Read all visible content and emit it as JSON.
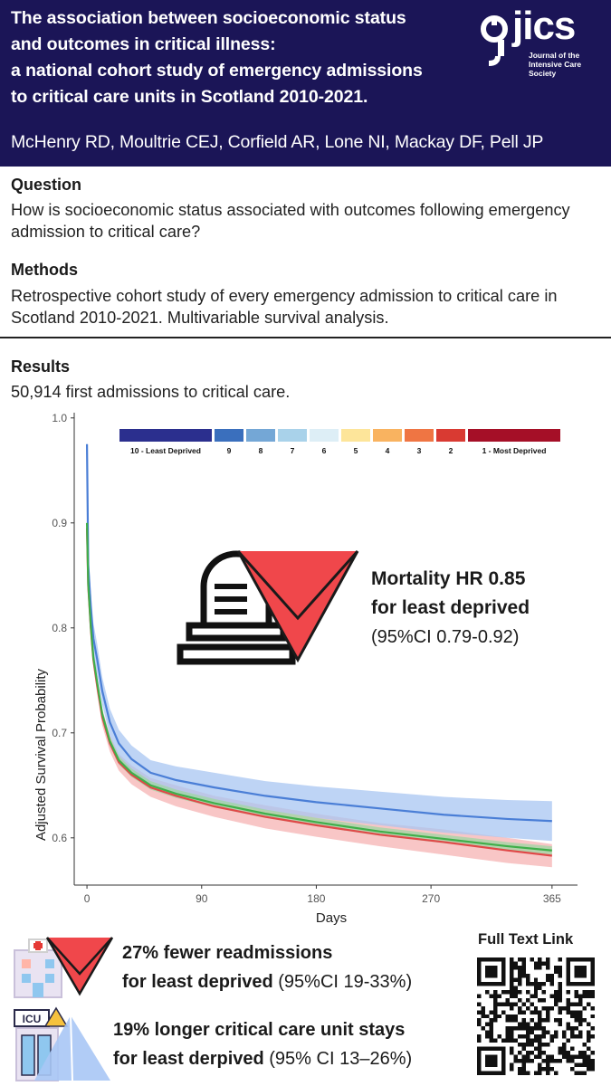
{
  "header": {
    "title_lines": [
      "The association between socioeconomic status",
      "and outcomes in critical illness:",
      "a national cohort study of emergency admissions",
      "to critical care units in Scotland 2010-2021."
    ],
    "authors": "McHenry RD, Moultrie CEJ, Corfield AR, Lone NI, Mackay DF, Pell JP",
    "logo_word": "jics",
    "logo_sub": [
      "Journal of the",
      "Intensive Care",
      "Society"
    ]
  },
  "question": {
    "heading": "Question",
    "text": "How is socioeconomic status associated with outcomes following emergency admission to critical care?"
  },
  "methods": {
    "heading": "Methods",
    "text": "Retrospective cohort study of every emergency admission to critical care in Scotland 2010-2021. Multivariable survival analysis."
  },
  "results": {
    "heading": "Results",
    "text": "50,914 first admissions to critical care."
  },
  "chart_data": {
    "type": "line",
    "title": "",
    "xlabel": "Days",
    "ylabel": "Adjusted Survival Probability",
    "xlim": [
      -10,
      385
    ],
    "ylim": [
      0.555,
      1.005
    ],
    "x_ticks": [
      0,
      90,
      180,
      270,
      365
    ],
    "y_ticks": [
      0.6,
      0.7,
      0.8,
      0.9,
      1.0
    ],
    "y_tick_labels": [
      "0.6",
      "0.7",
      "0.8",
      "0.9",
      "1.0"
    ],
    "legend": {
      "placement": "top",
      "entries": [
        {
          "label": "10 - Least Deprived",
          "color": "#2b2f8e"
        },
        {
          "label": "9",
          "color": "#3a6fbd"
        },
        {
          "label": "8",
          "color": "#74a7d6"
        },
        {
          "label": "7",
          "color": "#a9d2ea"
        },
        {
          "label": "6",
          "color": "#ddeef6"
        },
        {
          "label": "5",
          "color": "#fde59a"
        },
        {
          "label": "4",
          "color": "#f9b360"
        },
        {
          "label": "3",
          "color": "#ef7543"
        },
        {
          "label": "2",
          "color": "#d93a32"
        },
        {
          "label": "1 - Most Deprived",
          "color": "#a50f27"
        }
      ]
    },
    "series": [
      {
        "name": "10 - Least Deprived",
        "color": "#4a7ed6",
        "band_color": "#a8c6f2",
        "x": [
          0,
          1,
          3,
          5,
          8,
          12,
          18,
          25,
          35,
          50,
          70,
          100,
          140,
          180,
          230,
          280,
          330,
          365
        ],
        "y": [
          0.975,
          0.86,
          0.82,
          0.79,
          0.77,
          0.74,
          0.71,
          0.69,
          0.675,
          0.662,
          0.655,
          0.648,
          0.64,
          0.634,
          0.628,
          0.622,
          0.618,
          0.616
        ],
        "lower": [
          0.97,
          0.85,
          0.805,
          0.775,
          0.755,
          0.727,
          0.697,
          0.677,
          0.663,
          0.65,
          0.642,
          0.634,
          0.626,
          0.619,
          0.612,
          0.605,
          0.6,
          0.597
        ],
        "upper": [
          0.98,
          0.87,
          0.835,
          0.805,
          0.785,
          0.753,
          0.723,
          0.703,
          0.688,
          0.674,
          0.668,
          0.662,
          0.654,
          0.649,
          0.644,
          0.639,
          0.636,
          0.635
        ]
      },
      {
        "name": "1 - Most Deprived",
        "color": "#e04848",
        "band_color": "#f5b3b3",
        "x": [
          0,
          1,
          3,
          5,
          8,
          12,
          18,
          25,
          35,
          50,
          70,
          100,
          140,
          180,
          230,
          280,
          330,
          365
        ],
        "y": [
          0.895,
          0.84,
          0.8,
          0.77,
          0.745,
          0.715,
          0.69,
          0.672,
          0.66,
          0.648,
          0.64,
          0.63,
          0.62,
          0.612,
          0.603,
          0.596,
          0.588,
          0.583
        ],
        "lower": [
          0.89,
          0.835,
          0.793,
          0.763,
          0.737,
          0.707,
          0.682,
          0.664,
          0.651,
          0.639,
          0.63,
          0.62,
          0.609,
          0.601,
          0.592,
          0.584,
          0.576,
          0.572
        ],
        "upper": [
          0.9,
          0.845,
          0.807,
          0.777,
          0.753,
          0.723,
          0.698,
          0.68,
          0.669,
          0.657,
          0.65,
          0.64,
          0.631,
          0.623,
          0.614,
          0.608,
          0.6,
          0.594
        ]
      },
      {
        "name": "Other quintiles",
        "color": "#3fae4a",
        "band_color": "#9fd6a3",
        "x": [
          0,
          1,
          3,
          5,
          8,
          12,
          18,
          25,
          35,
          50,
          70,
          100,
          140,
          180,
          230,
          280,
          330,
          365
        ],
        "y": [
          0.9,
          0.842,
          0.802,
          0.772,
          0.748,
          0.718,
          0.692,
          0.674,
          0.662,
          0.65,
          0.642,
          0.633,
          0.623,
          0.615,
          0.606,
          0.599,
          0.592,
          0.588
        ],
        "lower": [
          0.896,
          0.838,
          0.798,
          0.768,
          0.744,
          0.714,
          0.688,
          0.67,
          0.658,
          0.646,
          0.638,
          0.629,
          0.619,
          0.611,
          0.602,
          0.595,
          0.588,
          0.584
        ],
        "upper": [
          0.904,
          0.846,
          0.806,
          0.776,
          0.752,
          0.722,
          0.696,
          0.678,
          0.666,
          0.654,
          0.646,
          0.637,
          0.627,
          0.619,
          0.61,
          0.603,
          0.596,
          0.592
        ]
      }
    ]
  },
  "callout": {
    "title_line1": "Mortality HR 0.85",
    "title_line2": "for least deprived",
    "ci": "(95%CI 0.79-0.92)"
  },
  "stats": {
    "readmissions_line1": "27% fewer readmissions",
    "readmissions_bold2": "for least deprived",
    "readmissions_ci": " (95%CI 19-33%)",
    "stays_line1": "19% longer critical care unit stays",
    "stays_bold2": "for least derpived",
    "stays_ci": " (95% CI 13–26%)",
    "icu_sign": "ICU"
  },
  "qr": {
    "title": "Full Text Link"
  },
  "colors": {
    "header_bg": "#1b1557",
    "down_arrow": "#f0474b",
    "up_arrow": "#a9c7f5"
  }
}
